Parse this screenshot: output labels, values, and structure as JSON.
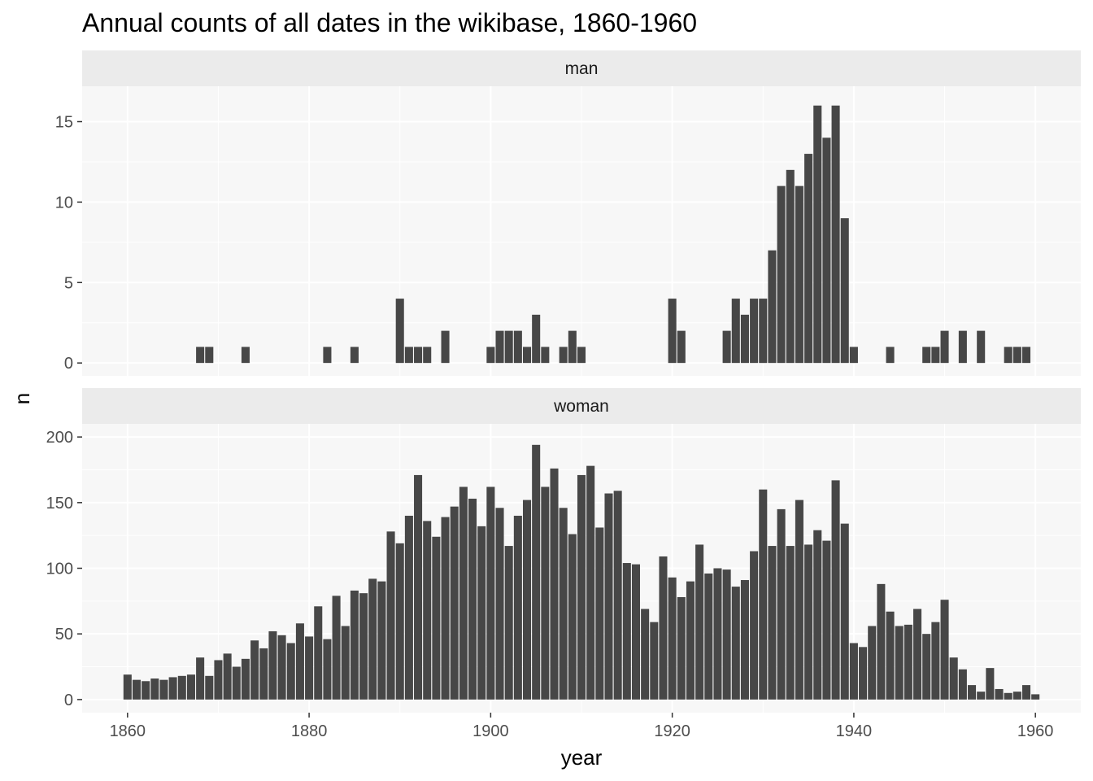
{
  "chart_data": {
    "type": "bar",
    "title": "Annual counts of all dates in the wikibase, 1860-1960",
    "xlabel": "year",
    "ylabel": "n",
    "xlim": [
      1855,
      1965
    ],
    "x_ticks": [
      1860,
      1880,
      1900,
      1920,
      1940,
      1960
    ],
    "grid": true,
    "bar_color": "#474747",
    "panel_background": "#f7f7f7",
    "strip_background": "#ebebeb",
    "gridline_color": "#ffffff",
    "panels": [
      {
        "name": "man",
        "ylim": [
          -0.8,
          17.2
        ],
        "y_ticks": [
          0,
          5,
          10,
          15
        ],
        "x": [
          1868,
          1869,
          1873,
          1882,
          1885,
          1890,
          1891,
          1892,
          1893,
          1895,
          1900,
          1901,
          1902,
          1903,
          1904,
          1905,
          1906,
          1908,
          1909,
          1910,
          1920,
          1921,
          1926,
          1927,
          1928,
          1929,
          1930,
          1931,
          1932,
          1933,
          1934,
          1935,
          1936,
          1937,
          1938,
          1939,
          1940,
          1944,
          1948,
          1949,
          1950,
          1952,
          1954,
          1957,
          1958,
          1959
        ],
        "values": [
          1,
          1,
          1,
          1,
          1,
          4,
          1,
          1,
          1,
          2,
          1,
          2,
          2,
          2,
          1,
          3,
          1,
          1,
          2,
          1,
          4,
          2,
          2,
          4,
          3,
          4,
          4,
          7,
          11,
          12,
          11,
          13,
          16,
          14,
          16,
          9,
          1,
          1,
          1,
          1,
          2,
          2,
          2,
          1,
          1,
          1
        ]
      },
      {
        "name": "woman",
        "ylim": [
          -10,
          210
        ],
        "y_ticks": [
          0,
          50,
          100,
          150,
          200
        ],
        "x": [
          1860,
          1861,
          1862,
          1863,
          1864,
          1865,
          1866,
          1867,
          1868,
          1869,
          1870,
          1871,
          1872,
          1873,
          1874,
          1875,
          1876,
          1877,
          1878,
          1879,
          1880,
          1881,
          1882,
          1883,
          1884,
          1885,
          1886,
          1887,
          1888,
          1889,
          1890,
          1891,
          1892,
          1893,
          1894,
          1895,
          1896,
          1897,
          1898,
          1899,
          1900,
          1901,
          1902,
          1903,
          1904,
          1905,
          1906,
          1907,
          1908,
          1909,
          1910,
          1911,
          1912,
          1913,
          1914,
          1915,
          1916,
          1917,
          1918,
          1919,
          1920,
          1921,
          1922,
          1923,
          1924,
          1925,
          1926,
          1927,
          1928,
          1929,
          1930,
          1931,
          1932,
          1933,
          1934,
          1935,
          1936,
          1937,
          1938,
          1939,
          1940,
          1941,
          1942,
          1943,
          1944,
          1945,
          1946,
          1947,
          1948,
          1949,
          1950,
          1951,
          1952,
          1953,
          1954,
          1955,
          1956,
          1957,
          1958,
          1959,
          1960
        ],
        "values": [
          19,
          15,
          14,
          16,
          15,
          17,
          18,
          19,
          32,
          18,
          30,
          35,
          25,
          31,
          45,
          39,
          52,
          49,
          43,
          58,
          48,
          71,
          46,
          79,
          56,
          83,
          81,
          92,
          90,
          128,
          119,
          140,
          171,
          136,
          124,
          139,
          147,
          162,
          153,
          132,
          162,
          146,
          117,
          140,
          152,
          194,
          162,
          176,
          146,
          126,
          171,
          178,
          131,
          157,
          159,
          104,
          103,
          69,
          59,
          109,
          93,
          78,
          90,
          118,
          96,
          100,
          99,
          86,
          91,
          113,
          160,
          117,
          145,
          117,
          152,
          118,
          129,
          121,
          167,
          134,
          43,
          40,
          56,
          88,
          67,
          56,
          57,
          69,
          50,
          59,
          76,
          32,
          23,
          11,
          6,
          24,
          8,
          5,
          6,
          11,
          4
        ]
      }
    ]
  }
}
